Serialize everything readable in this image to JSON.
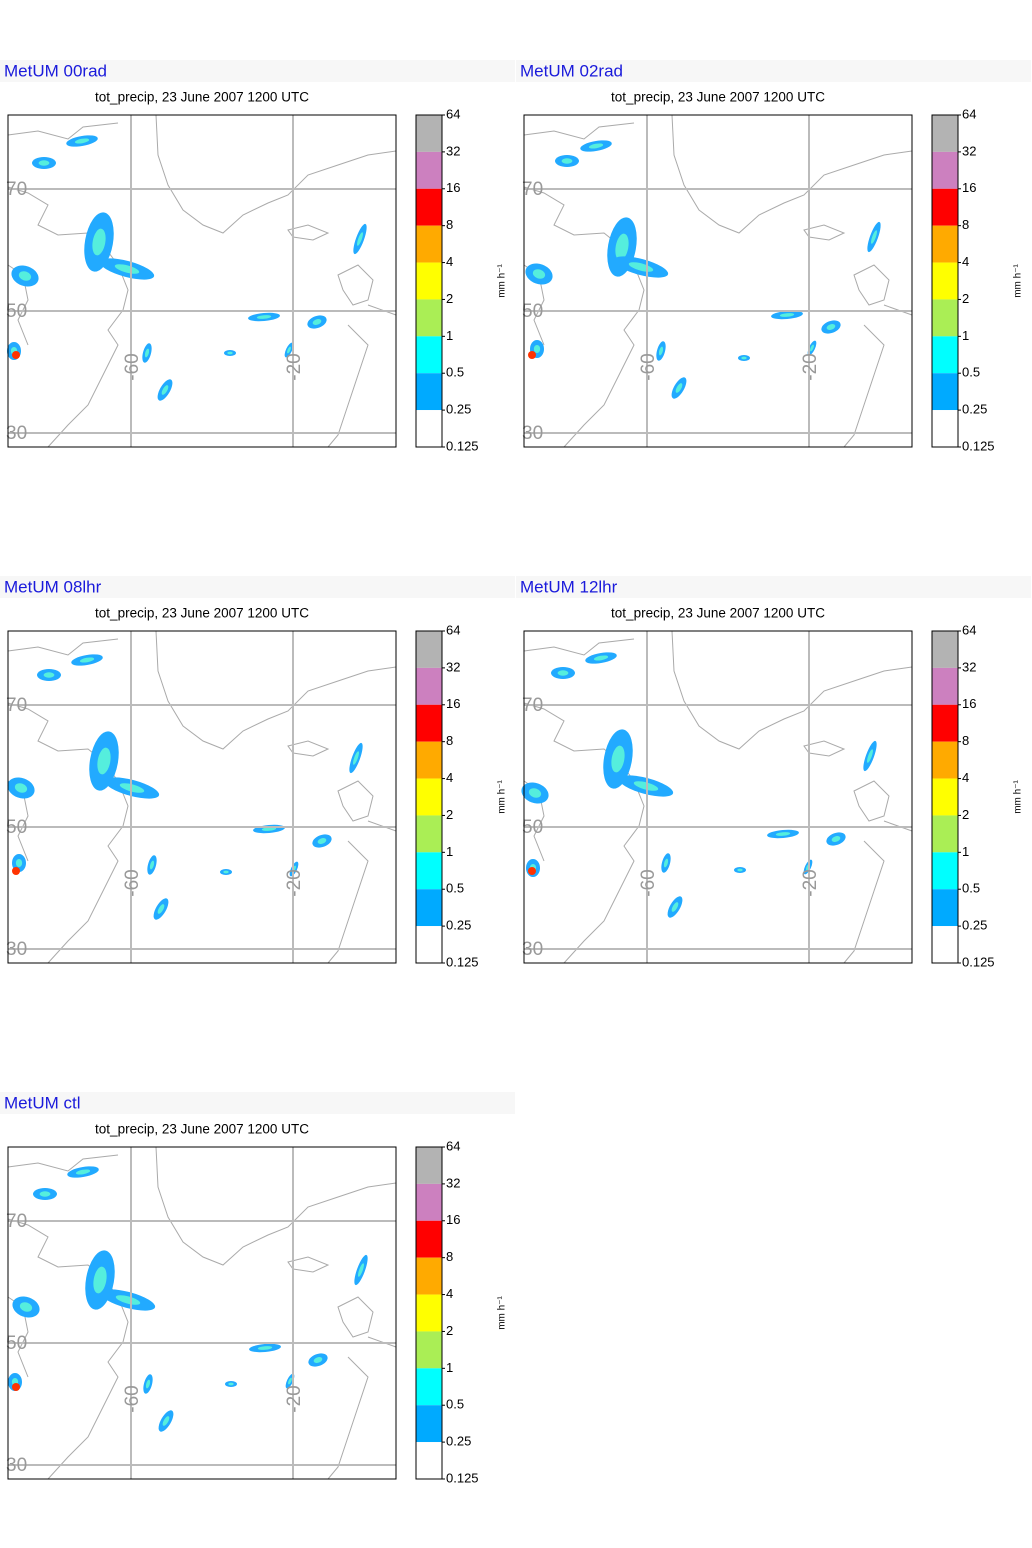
{
  "panels": [
    {
      "title": "MetUM 00rad",
      "subtitle": "tot_precip, 23 June 2007 1200 UTC"
    },
    {
      "title": "MetUM 02rad",
      "subtitle": "tot_precip, 23 June 2007 1200 UTC"
    },
    {
      "title": "MetUM 08lhr",
      "subtitle": "tot_precip, 23 June 2007 1200 UTC"
    },
    {
      "title": "MetUM 12lhr",
      "subtitle": "tot_precip, 23 June 2007 1200 UTC"
    },
    {
      "title": "MetUM ctl",
      "subtitle": "tot_precip, 23 June 2007 1200 UTC"
    }
  ],
  "lat_labels": [
    70,
    50,
    30
  ],
  "lon_labels": [
    -60,
    -20
  ],
  "colorbar": {
    "levels": [
      64,
      32,
      16,
      8,
      4,
      2,
      1,
      0.5,
      0.25,
      0.125
    ],
    "colors": [
      "#b3b3b3",
      "#cc80bf",
      "#ff0000",
      "#ffaa00",
      "#ffff00",
      "#aaee55",
      "#00ffff",
      "#00aaff",
      "#ffffff"
    ],
    "unit": "mm h⁻¹"
  }
}
